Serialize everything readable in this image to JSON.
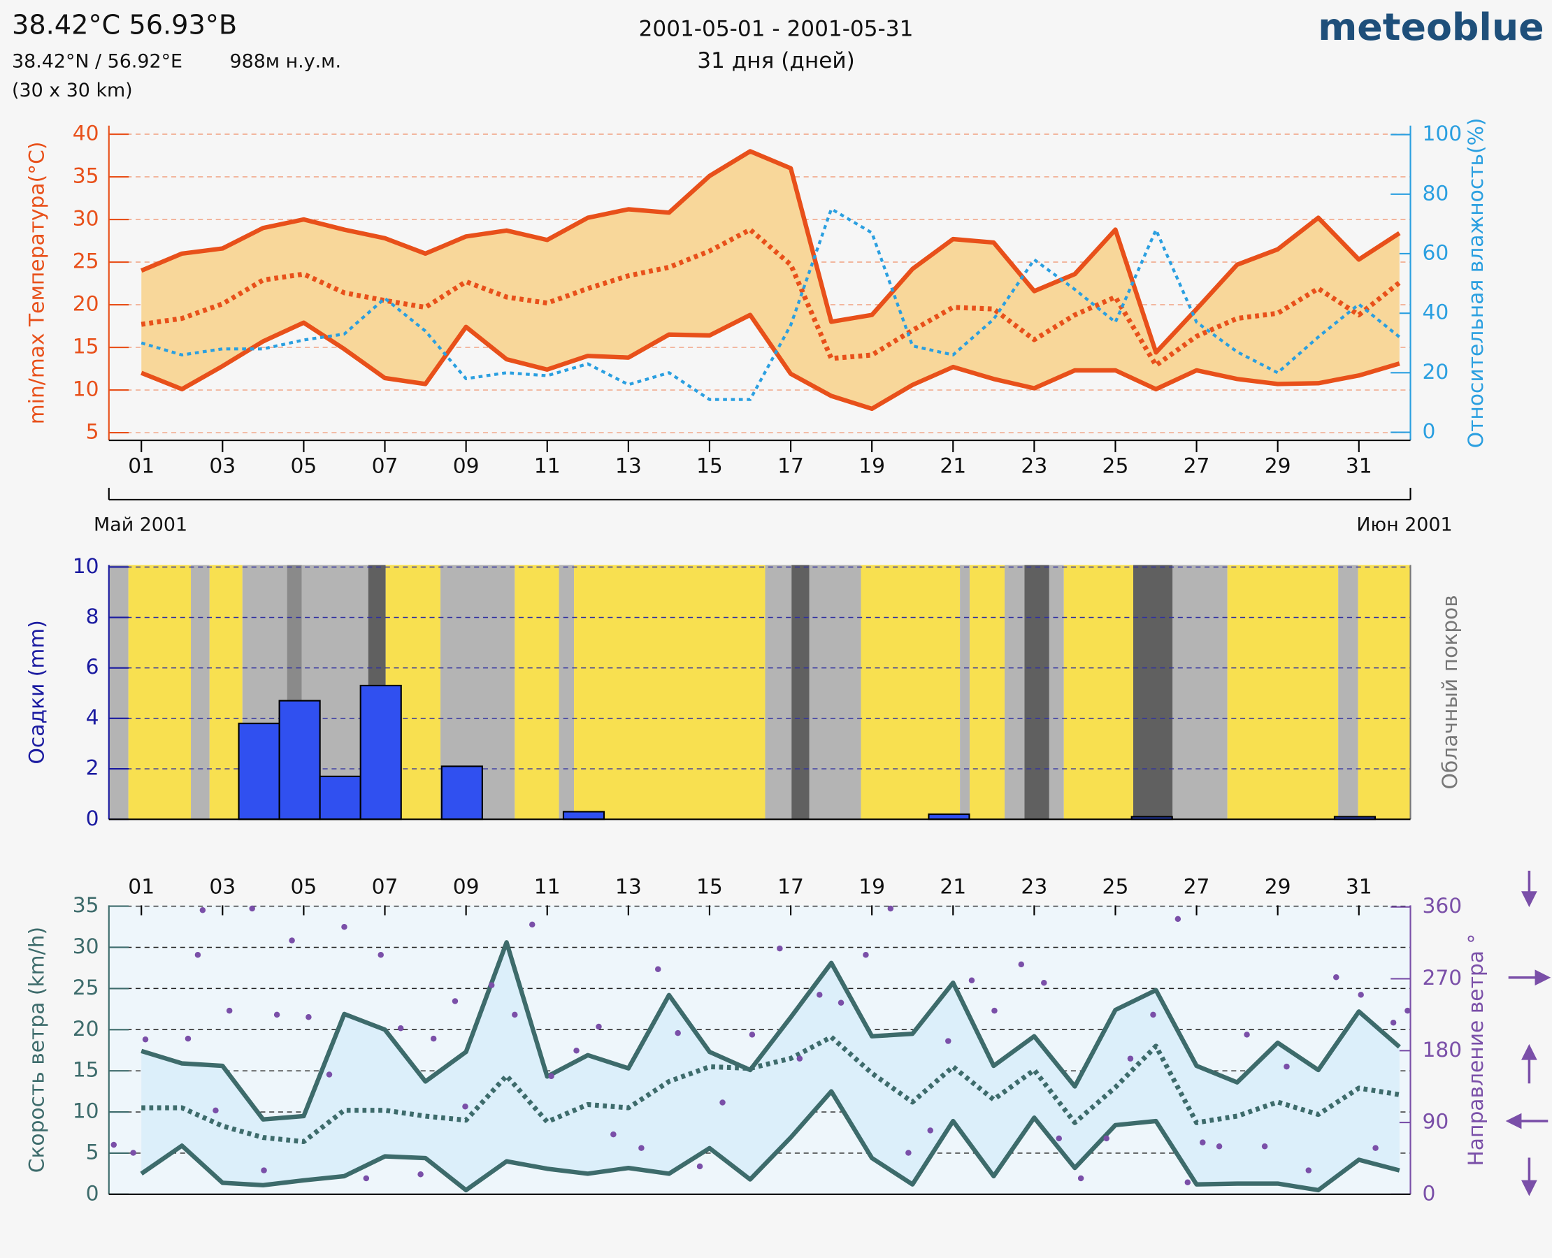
{
  "header": {
    "title": "38.42°C 56.93°B",
    "coords": "38.42°N / 56.92°E",
    "elevation": "988м н.у.м.",
    "resolution": "(30 x 30 km)",
    "period": "2001-05-01 - 2001-05-31",
    "days": "31 дня (дней)",
    "logo": "meteoblue"
  },
  "chart_data": [
    {
      "type": "line",
      "ylabel": "min/max Температура(°C)",
      "y2label": "Относительная влажность(%)",
      "month_labels": [
        "Май 2001",
        "Июн 2001"
      ],
      "x": [
        1,
        2,
        3,
        4,
        5,
        6,
        7,
        8,
        9,
        10,
        11,
        12,
        13,
        14,
        15,
        16,
        17,
        18,
        19,
        20,
        21,
        22,
        23,
        24,
        25,
        26,
        27,
        28,
        29,
        30,
        31,
        32
      ],
      "xlim": [
        0.2,
        32.27
      ],
      "xticks": [
        {
          "value": 1,
          "label": "01"
        },
        {
          "value": 3,
          "label": "03"
        },
        {
          "value": 5,
          "label": "05"
        },
        {
          "value": 7,
          "label": "07"
        },
        {
          "value": 9,
          "label": "09"
        },
        {
          "value": 11,
          "label": "11"
        },
        {
          "value": 13,
          "label": "13"
        },
        {
          "value": 15,
          "label": "15"
        },
        {
          "value": 17,
          "label": "17"
        },
        {
          "value": 19,
          "label": "19"
        },
        {
          "value": 21,
          "label": "21"
        },
        {
          "value": 23,
          "label": "23"
        },
        {
          "value": 25,
          "label": "25"
        },
        {
          "value": 27,
          "label": "27"
        },
        {
          "value": 29,
          "label": "29"
        },
        {
          "value": 31,
          "label": "31"
        }
      ],
      "ylim": [
        4.1,
        41
      ],
      "yticks": [
        5,
        10,
        15,
        20,
        25,
        30,
        35,
        40
      ],
      "y2lim": [
        -2.7,
        103
      ],
      "y2ticks": [
        0,
        20,
        40,
        60,
        80,
        100
      ],
      "grid": true,
      "grid_color": "#f0a080",
      "band_color": "#f8d79a",
      "series": [
        {
          "color": "#e8501a",
          "style": "solid",
          "values": [
            24,
            26,
            26.6,
            29,
            30,
            28.8,
            27.8,
            26,
            28,
            28.7,
            27.6,
            30.2,
            31.2,
            30.8,
            35.1,
            38,
            36,
            18,
            18.8,
            24.2,
            27.7,
            27.3,
            21.6,
            23.6,
            28.8,
            14.4,
            19.5,
            24.7,
            26.5,
            30.2,
            25.3,
            28.4
          ]
        },
        {
          "color": "#e8501a",
          "style": "solid",
          "values": [
            12,
            10.1,
            12.8,
            15.7,
            17.9,
            14.8,
            11.4,
            10.7,
            17.4,
            13.6,
            12.4,
            14,
            13.8,
            16.5,
            16.4,
            18.8,
            11.9,
            9.3,
            7.8,
            10.6,
            12.7,
            11.3,
            10.2,
            12.3,
            12.3,
            10.1,
            12.3,
            11.3,
            10.7,
            10.8,
            11.7,
            13.1
          ]
        },
        {
          "color": "#e8501a",
          "style": "dotted",
          "values": [
            17.7,
            18.4,
            20.1,
            22.9,
            23.6,
            21.4,
            20.5,
            19.7,
            22.7,
            20.9,
            20.2,
            21.9,
            23.4,
            24.4,
            26.3,
            28.8,
            24.7,
            13.7,
            14.1,
            17,
            19.7,
            19.5,
            15.9,
            18.8,
            20.9,
            12.9,
            16.3,
            18.4,
            19,
            21.9,
            18.8,
            22.6
          ]
        },
        {
          "color": "#2a9fe0",
          "style": "dotted",
          "axis": "y2",
          "values": [
            30,
            26,
            28,
            28,
            31,
            33,
            45,
            34,
            18,
            20,
            19,
            23,
            16,
            20,
            11,
            11,
            36,
            75,
            67,
            29,
            26,
            38,
            58,
            48,
            37,
            68,
            37,
            27,
            20,
            32,
            43,
            32
          ]
        }
      ]
    },
    {
      "type": "bar",
      "ylabel": "Осадки (mm)",
      "y2label": "Облачный покров",
      "x": [
        1,
        2,
        3,
        4,
        5,
        6,
        7,
        8,
        9,
        10,
        11,
        12,
        13,
        14,
        15,
        16,
        17,
        18,
        19,
        20,
        21,
        22,
        23,
        24,
        25,
        26,
        27,
        28,
        29,
        30,
        31
      ],
      "values": [
        0,
        0,
        0,
        3.8,
        4.7,
        1.7,
        5.3,
        0,
        2.1,
        0,
        0,
        0.3,
        0,
        0,
        0,
        0,
        0,
        0,
        0,
        0,
        0.2,
        0,
        0,
        0,
        0,
        0.1,
        0,
        0,
        0,
        0,
        0.1
      ],
      "color": "#3050f0",
      "xlim": [
        0.2,
        32.27
      ],
      "ylim": [
        0,
        10.08
      ],
      "yticks": [
        0,
        2,
        4,
        6,
        8,
        10
      ],
      "grid": true,
      "grid_color": "#3030a0",
      "clear_color": "#f8e050",
      "cloud_cover": {
        "edges": [
          0.2,
          0.68,
          2.22,
          2.68,
          3.49,
          4.59,
          4.95,
          6.59,
          7.02,
          8.37,
          10.2,
          11.29,
          11.66,
          16.37,
          17.02,
          17.46,
          18.73,
          21.17,
          21.41,
          22.27,
          22.76,
          23.37,
          23.73,
          25.44,
          26.41,
          27.76,
          30.49,
          30.98,
          32.27
        ],
        "values": [
          40,
          0,
          40,
          0,
          40,
          70,
          40,
          100,
          0,
          40,
          0,
          40,
          0,
          40,
          100,
          40,
          0,
          40,
          0,
          40,
          100,
          40,
          0,
          100,
          40,
          0,
          40,
          0
        ]
      }
    },
    {
      "type": "line",
      "ylabel": "Скорость ветра (km/h)",
      "y2label": "Направление ветра °",
      "x": [
        1,
        2,
        3,
        4,
        5,
        6,
        7,
        8,
        9,
        10,
        11,
        12,
        13,
        14,
        15,
        16,
        17,
        18,
        19,
        20,
        21,
        22,
        23,
        24,
        25,
        26,
        27,
        28,
        29,
        30,
        31,
        32
      ],
      "xlim": [
        0.2,
        32.27
      ],
      "xticks": [
        {
          "value": 1,
          "label": "01"
        },
        {
          "value": 3,
          "label": "03"
        },
        {
          "value": 5,
          "label": "05"
        },
        {
          "value": 7,
          "label": "07"
        },
        {
          "value": 9,
          "label": "09"
        },
        {
          "value": 11,
          "label": "11"
        },
        {
          "value": 13,
          "label": "13"
        },
        {
          "value": 15,
          "label": "15"
        },
        {
          "value": 17,
          "label": "17"
        },
        {
          "value": 19,
          "label": "19"
        },
        {
          "value": 21,
          "label": "21"
        },
        {
          "value": 23,
          "label": "23"
        },
        {
          "value": 25,
          "label": "25"
        },
        {
          "value": 27,
          "label": "27"
        },
        {
          "value": 29,
          "label": "29"
        },
        {
          "value": 31,
          "label": "31"
        }
      ],
      "ylim": [
        0,
        35.1
      ],
      "yticks": [
        0,
        5,
        10,
        15,
        20,
        25,
        30,
        35
      ],
      "y2lim": [
        0,
        362
      ],
      "y2ticks": [
        0,
        90,
        180,
        270,
        360
      ],
      "grid": true,
      "grid_color": "#222222",
      "band_color": "#dceffa",
      "series": [
        {
          "color": "#3d6b6b",
          "style": "solid",
          "values": [
            17.4,
            15.9,
            15.6,
            9.1,
            9.5,
            21.9,
            20,
            13.7,
            17.3,
            30.6,
            14.3,
            16.9,
            15.3,
            24.2,
            17.3,
            15.1,
            21.5,
            28.1,
            19.2,
            19.5,
            25.7,
            15.6,
            19.2,
            13.1,
            22.4,
            24.8,
            15.6,
            13.6,
            18.4,
            15.1,
            22.2,
            17.9
          ]
        },
        {
          "color": "#3d6b6b",
          "style": "solid",
          "values": [
            2.5,
            5.9,
            1.4,
            1.1,
            1.7,
            2.2,
            4.6,
            4.4,
            0.5,
            4,
            3.1,
            2.5,
            3.2,
            2.5,
            5.6,
            1.8,
            6.9,
            12.5,
            4.4,
            1.2,
            8.9,
            2.2,
            9.3,
            3.2,
            8.4,
            8.9,
            1.2,
            1.3,
            1.3,
            0.5,
            4.2,
            2.9
          ]
        },
        {
          "color": "#3d6b6b",
          "style": "dotted",
          "values": [
            10.5,
            10.5,
            8.3,
            6.9,
            6.4,
            10.2,
            10.2,
            9.5,
            9,
            14.4,
            8.8,
            10.9,
            10.5,
            13.7,
            15.5,
            15.3,
            16.5,
            19.1,
            14.7,
            11.2,
            15.5,
            11.5,
            15.1,
            8.7,
            13,
            18,
            8.7,
            9.5,
            11.2,
            9.7,
            12.9,
            12.1
          ]
        },
        {
          "type": "scatter",
          "color": "#7a4fa8",
          "axis": "y2",
          "x": [
            0.32,
            0.8,
            1.1,
            2.15,
            2.39,
            2.51,
            2.83,
            3.17,
            3.73,
            4.02,
            4.34,
            4.71,
            5.12,
            5.63,
            6.0,
            6.54,
            6.9,
            7.39,
            7.88,
            8.2,
            8.73,
            8.98,
            9.63,
            10.2,
            10.63,
            11.1,
            11.72,
            12.27,
            12.63,
            13.32,
            13.73,
            14.22,
            14.76,
            15.32,
            16.05,
            16.73,
            17.22,
            17.71,
            18.24,
            18.85,
            19.46,
            19.9,
            20.44,
            20.88,
            21.46,
            22.02,
            22.68,
            23.24,
            23.61,
            24.15,
            24.78,
            25.37,
            25.93,
            26.54,
            26.78,
            27.15,
            27.56,
            28.24,
            28.68,
            29.22,
            29.76,
            30.44,
            31.05,
            31.41,
            31.85,
            32.2
          ],
          "values": [
            62,
            52,
            194,
            195,
            300,
            356,
            105,
            230,
            358,
            30,
            225,
            318,
            222,
            150,
            335,
            20,
            300,
            208,
            25,
            195,
            242,
            110,
            262,
            225,
            338,
            148,
            180,
            210,
            75,
            58,
            282,
            202,
            35,
            115,
            200,
            308,
            170,
            250,
            240,
            300,
            358,
            52,
            80,
            192,
            268,
            230,
            288,
            265,
            70,
            20,
            70,
            170,
            225,
            345,
            15,
            65,
            60,
            200,
            60,
            160,
            30,
            272,
            250,
            58,
            215,
            230
          ]
        }
      ]
    }
  ]
}
